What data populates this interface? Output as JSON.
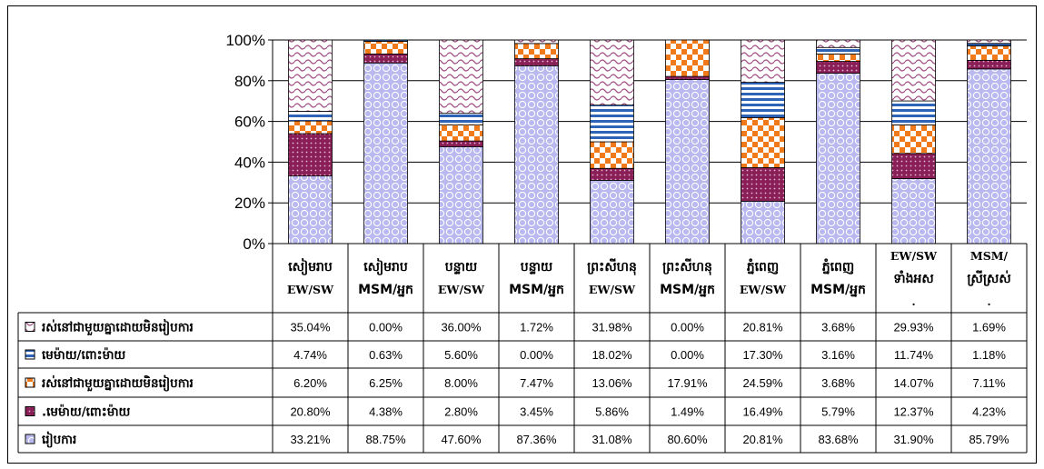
{
  "chart_data": {
    "type": "bar",
    "stacked": "percent",
    "ylim": [
      0,
      100
    ],
    "yticks": [
      "0%",
      "20%",
      "40%",
      "60%",
      "80%",
      "100%"
    ],
    "grid": true,
    "legend": "table-left",
    "categories": [
      [
        "សៀមរាប",
        "EW/SW"
      ],
      [
        "សៀមរាប",
        "MSM/អ្នក"
      ],
      [
        "បន្ទាយ",
        "EW/SW"
      ],
      [
        "បន្ទាយ",
        "MSM/អ្នក"
      ],
      [
        "ព្រះសីហនុ",
        "EW/SW"
      ],
      [
        "ព្រះសីហនុ",
        "MSM/អ្នក"
      ],
      [
        "ភ្នំពេញ",
        "EW/SW"
      ],
      [
        "ភ្នំពេញ",
        "MSM/អ្នក"
      ],
      [
        "EW/SW",
        "ទាំងអស",
        "."
      ],
      [
        "MSM/",
        "ស្រីស្រស់",
        "."
      ]
    ],
    "series": [
      {
        "name": "រស់នៅជាមួយគ្នាដោយមិនរៀបការ",
        "pattern": "wave",
        "color": "#9e4f84",
        "values": [
          35.04,
          0.0,
          36.0,
          1.72,
          31.98,
          0.0,
          20.81,
          3.68,
          29.93,
          1.69
        ],
        "labels": [
          "35.04%",
          "0.00%",
          "36.00%",
          "1.72%",
          "31.98%",
          "0.00%",
          "20.81%",
          "3.68%",
          "29.93%",
          "1.69%"
        ]
      },
      {
        "name": "មេម៉ាយ/ពោះម៉ាយ",
        "pattern": "hstripe",
        "color": "#2e63b8",
        "values": [
          4.74,
          0.63,
          5.6,
          0.0,
          18.02,
          0.0,
          17.3,
          3.16,
          11.74,
          1.18
        ],
        "labels": [
          "4.74%",
          "0.63%",
          "5.60%",
          "0.00%",
          "18.02%",
          "0.00%",
          "17.30%",
          "3.16%",
          "11.74%",
          "1.18%"
        ]
      },
      {
        "name": "រស់នៅជាមួយគ្នាដោយមិនរៀបការ",
        "pattern": "checker",
        "color": "#f07a1a",
        "values": [
          6.2,
          6.25,
          8.0,
          7.47,
          13.06,
          17.91,
          24.59,
          3.68,
          14.07,
          7.11
        ],
        "labels": [
          "6.20%",
          "6.25%",
          "8.00%",
          "7.47%",
          "13.06%",
          "17.91%",
          "24.59%",
          "3.68%",
          "14.07%",
          "7.11%"
        ]
      },
      {
        "name": ".មេម៉ាយ/ពោះម៉ាយ",
        "pattern": "dots",
        "color": "#8a1f57",
        "values": [
          20.8,
          4.38,
          2.8,
          3.45,
          5.86,
          1.49,
          16.49,
          5.79,
          12.37,
          4.23
        ],
        "labels": [
          "20.80%",
          "4.38%",
          "2.80%",
          "3.45%",
          "5.86%",
          "1.49%",
          "16.49%",
          "5.79%",
          "12.37%",
          "4.23%"
        ]
      },
      {
        "name": "រៀបការ",
        "pattern": "circles",
        "color": "#9a9ae0",
        "values": [
          33.21,
          88.75,
          47.6,
          87.36,
          31.08,
          80.6,
          20.81,
          83.68,
          31.9,
          85.79
        ],
        "labels": [
          "33.21%",
          "88.75%",
          "47.60%",
          "87.36%",
          "31.08%",
          "80.60%",
          "20.81%",
          "83.68%",
          "31.90%",
          "85.79%"
        ]
      }
    ]
  }
}
